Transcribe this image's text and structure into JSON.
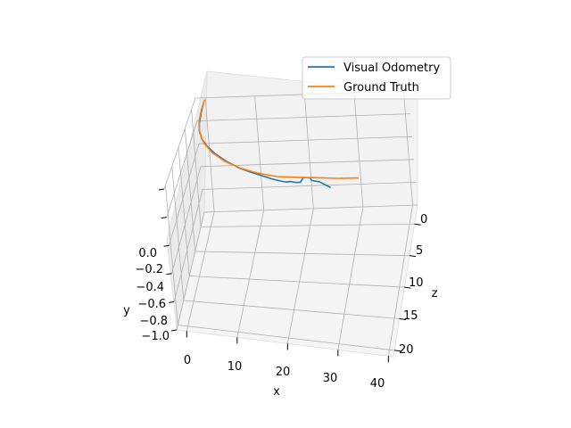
{
  "chart_data": {
    "type": "line",
    "projection": "3d",
    "xlabel": "x",
    "ylabel": "y",
    "zlabel": "z",
    "x_ticks": [
      "0",
      "10",
      "20",
      "30",
      "40"
    ],
    "y_ticks": [
      "0.0",
      "−0.2",
      "−0.4",
      "−0.6",
      "−0.8",
      "−1.0"
    ],
    "z_ticks": [
      "0",
      "5",
      "10",
      "15",
      "20"
    ],
    "xlim": [
      -2,
      41
    ],
    "ylim": [
      -1.0,
      0.0
    ],
    "zlim": [
      -3,
      21
    ],
    "grid": true,
    "legend_position": "top-right",
    "series": [
      {
        "name": "Visual Odometry",
        "color": "#1f77b4",
        "points": [
          {
            "x": 0.0,
            "z": -1.5
          },
          {
            "x": 0.2,
            "z": 1.0
          },
          {
            "x": 0.5,
            "z": 3.5
          },
          {
            "x": 1.0,
            "z": 5.5
          },
          {
            "x": 2.0,
            "z": 7.5
          },
          {
            "x": 3.5,
            "z": 9.3
          },
          {
            "x": 5.5,
            "z": 11.0
          },
          {
            "x": 8.0,
            "z": 12.6
          },
          {
            "x": 11.0,
            "z": 14.0
          },
          {
            "x": 13.5,
            "z": 14.8
          },
          {
            "x": 16.0,
            "z": 15.4
          },
          {
            "x": 18.0,
            "z": 15.9
          },
          {
            "x": 20.0,
            "z": 16.2
          },
          {
            "x": 21.0,
            "z": 16.3
          },
          {
            "x": 22.0,
            "z": 16.1
          },
          {
            "x": 23.0,
            "z": 16.2
          },
          {
            "x": 23.8,
            "z": 16.1
          },
          {
            "x": 24.2,
            "z": 15.0
          },
          {
            "x": 25.5,
            "z": 15.0
          },
          {
            "x": 26.0,
            "z": 15.5
          },
          {
            "x": 27.5,
            "z": 15.6
          },
          {
            "x": 30.0,
            "z": 16.6
          }
        ]
      },
      {
        "name": "Ground Truth",
        "color": "#ff7f0e",
        "points": [
          {
            "x": 0.0,
            "z": -2.5
          },
          {
            "x": 0.0,
            "z": 0.0
          },
          {
            "x": 0.3,
            "z": 3.0
          },
          {
            "x": 1.2,
            "z": 6.0
          },
          {
            "x": 2.8,
            "z": 8.7
          },
          {
            "x": 5.0,
            "z": 10.9
          },
          {
            "x": 8.0,
            "z": 12.8
          },
          {
            "x": 11.5,
            "z": 14.1
          },
          {
            "x": 15.0,
            "z": 14.9
          },
          {
            "x": 19.0,
            "z": 15.3
          },
          {
            "x": 23.0,
            "z": 15.1
          },
          {
            "x": 27.0,
            "z": 14.8
          },
          {
            "x": 31.0,
            "z": 14.6
          },
          {
            "x": 35.0,
            "z": 14.2
          }
        ]
      }
    ]
  }
}
